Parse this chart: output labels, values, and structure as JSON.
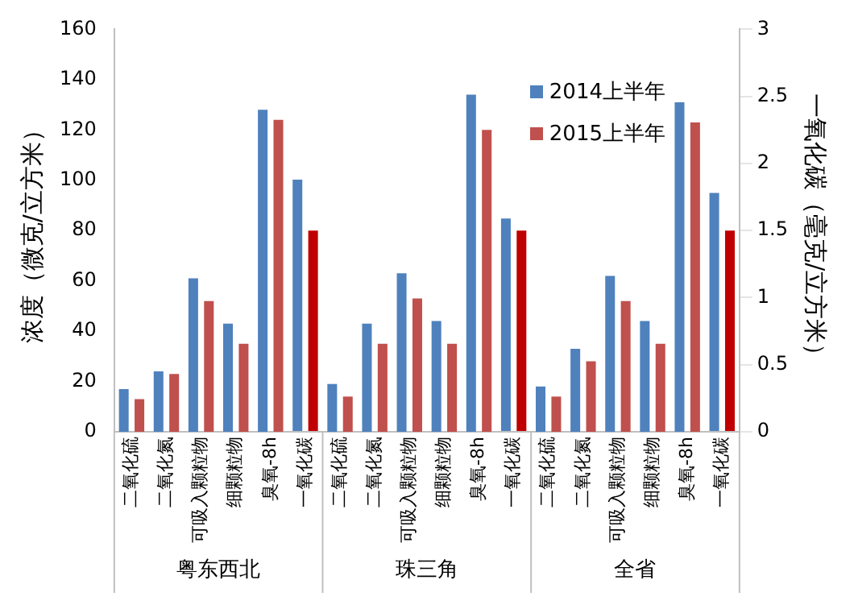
{
  "chart_data": {
    "type": "bar",
    "ylabel": "浓度（微克/立方米）",
    "y2label": "一氧化碳（毫克/立方米）",
    "categories": [
      "二氧化硫",
      "二氧化氮",
      "可吸入颗粒物",
      "细颗粒物",
      "臭氧-8h",
      "一氧化碳",
      "二氧化硫",
      "二氧化氮",
      "可吸入颗粒物",
      "细颗粒物",
      "臭氧-8h",
      "一氧化碳",
      "二氧化硫",
      "二氧化氮",
      "可吸入颗粒物",
      "细颗粒物",
      "臭氧-8h",
      "一氧化碳"
    ],
    "annotations": [
      "粤东西北",
      "珠三角",
      "全省"
    ],
    "series": [
      {
        "name": "2014上半年",
        "color": "#4f81bd",
        "values": [
          17,
          24,
          61,
          43,
          128,
          null,
          19,
          43,
          63,
          44,
          134,
          null,
          18,
          33,
          62,
          44,
          131,
          null
        ]
      },
      {
        "name": "2015上半年",
        "color": "#c0504d",
        "values": [
          13,
          23,
          52,
          35,
          124,
          null,
          14,
          35,
          53,
          35,
          120,
          null,
          14,
          28,
          52,
          35,
          123,
          null
        ]
      },
      {
        "color": "#4f81bd",
        "axis": "y2",
        "values": [
          null,
          null,
          null,
          null,
          null,
          1.88,
          null,
          null,
          null,
          null,
          null,
          1.59,
          null,
          null,
          null,
          null,
          null,
          1.78
        ]
      },
      {
        "color": "#c00000",
        "axis": "y2",
        "values": [
          null,
          null,
          null,
          null,
          null,
          1.5,
          null,
          null,
          null,
          null,
          null,
          1.5,
          null,
          null,
          null,
          null,
          null,
          1.5
        ]
      }
    ],
    "ylim": [
      0,
      160
    ],
    "yticks": [
      0,
      20,
      40,
      60,
      80,
      100,
      120,
      140,
      160
    ],
    "y2lim": [
      0,
      3
    ],
    "y2ticks": [
      0,
      0.5,
      1,
      1.5,
      2,
      2.5,
      3
    ],
    "grid": false,
    "legend": "top right"
  }
}
